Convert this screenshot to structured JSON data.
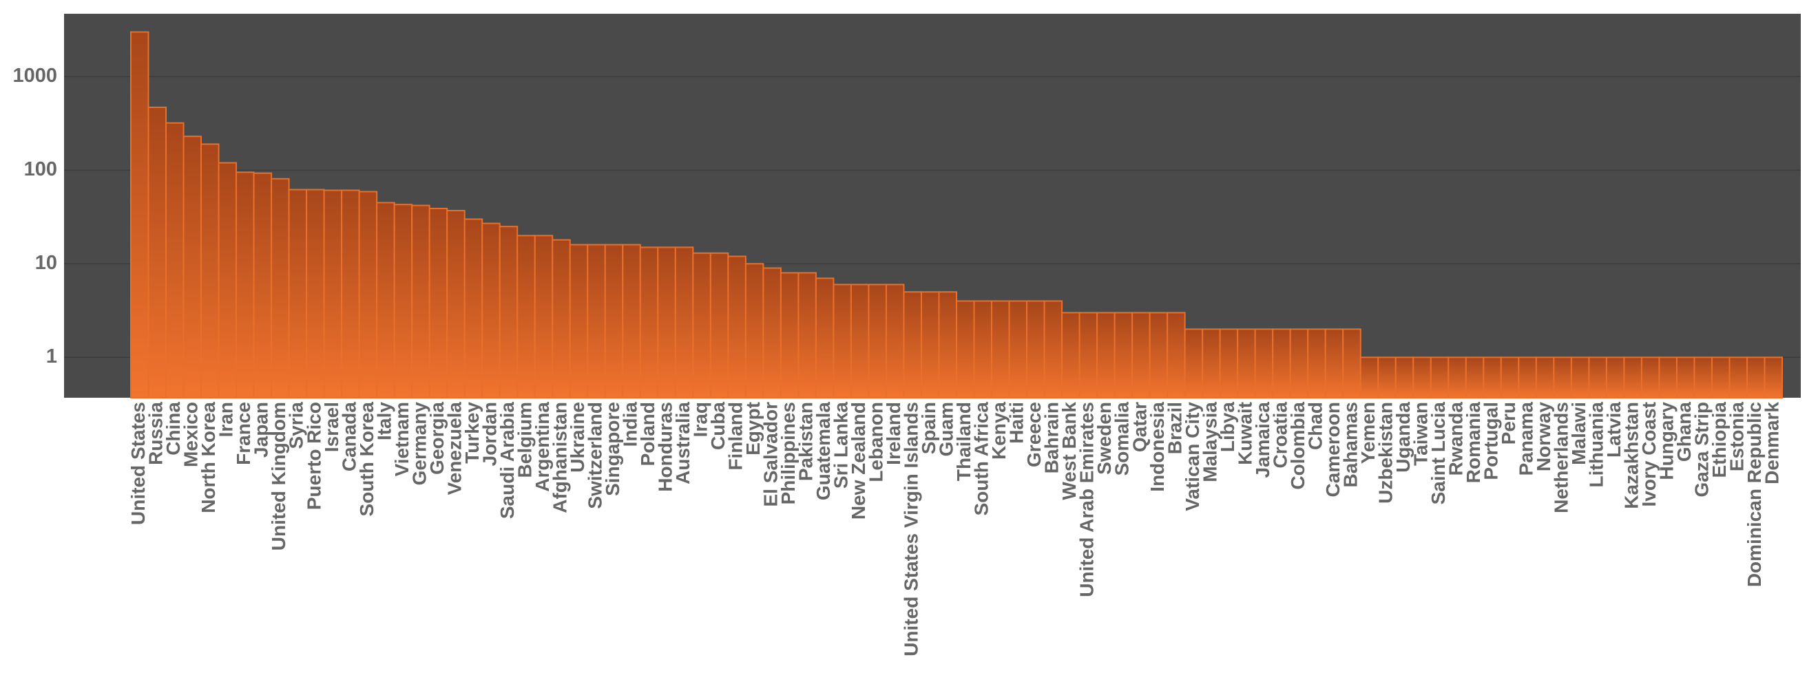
{
  "chart_data": {
    "type": "bar",
    "categories": [
      "United States",
      "Russia",
      "China",
      "Mexico",
      "North Korea",
      "Iran",
      "France",
      "Japan",
      "United Kingdom",
      "Syria",
      "Puerto Rico",
      "Israel",
      "Canada",
      "South Korea",
      "Italy",
      "Vietnam",
      "Germany",
      "Georgia",
      "Venezuela",
      "Turkey",
      "Jordan",
      "Saudi Arabia",
      "Belgium",
      "Argentina",
      "Afghanistan",
      "Ukraine",
      "Switzerland",
      "Singapore",
      "India",
      "Poland",
      "Honduras",
      "Australia",
      "Iraq",
      "Cuba",
      "Finland",
      "Egypt",
      "El Salvador",
      "Philippines",
      "Pakistan",
      "Guatemala",
      "Sri Lanka",
      "New Zealand",
      "Lebanon",
      "Ireland",
      "United States Virgin Islands",
      "Spain",
      "Guam",
      "Thailand",
      "South Africa",
      "Kenya",
      "Haiti",
      "Greece",
      "Bahrain",
      "West Bank",
      "United Arab Emirates",
      "Sweden",
      "Somalia",
      "Qatar",
      "Indonesia",
      "Brazil",
      "Vatican City",
      "Malaysia",
      "Libya",
      "Kuwait",
      "Jamaica",
      "Croatia",
      "Colombia",
      "Chad",
      "Cameroon",
      "Bahamas",
      "Yemen",
      "Uzbekistan",
      "Uganda",
      "Taiwan",
      "Saint Lucia",
      "Rwanda",
      "Romania",
      "Portugal",
      "Peru",
      "Panama",
      "Norway",
      "Netherlands",
      "Malawi",
      "Lithuania",
      "Latvia",
      "Kazakhstan",
      "Ivory Coast",
      "Hungary",
      "Ghana",
      "Gaza Strip",
      "Ethiopia",
      "Estonia",
      "Dominican Republic",
      "Denmark"
    ],
    "values": [
      3000,
      470,
      320,
      230,
      190,
      120,
      95,
      93,
      81,
      62,
      62,
      61,
      61,
      59,
      45,
      43,
      42,
      39,
      37,
      30,
      27,
      25,
      20,
      20,
      18,
      16,
      16,
      16,
      16,
      15,
      15,
      15,
      13,
      13,
      12,
      10,
      9,
      8,
      8,
      7,
      6,
      6,
      6,
      6,
      5,
      5,
      5,
      4,
      4,
      4,
      4,
      4,
      4,
      3,
      3,
      3,
      3,
      3,
      3,
      3,
      2,
      2,
      2,
      2,
      2,
      2,
      2,
      2,
      2,
      2,
      1,
      1,
      1,
      1,
      1,
      1,
      1,
      1,
      1,
      1,
      1,
      1,
      1,
      1,
      1,
      1,
      1,
      1,
      1,
      1,
      1,
      1,
      1,
      1
    ],
    "color": "#e8702a",
    "ylim": [
      0.37,
      4700
    ],
    "yticks": [
      1,
      10,
      100,
      1000
    ],
    "log_scale": true,
    "grid": true
  }
}
